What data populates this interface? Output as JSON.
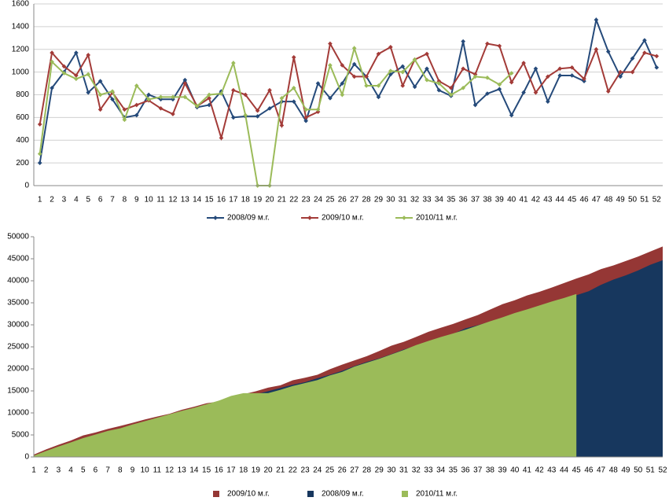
{
  "chart_data": [
    {
      "type": "line",
      "categories": [
        "1",
        "2",
        "3",
        "4",
        "5",
        "6",
        "7",
        "8",
        "9",
        "10",
        "11",
        "12",
        "13",
        "14",
        "15",
        "16",
        "17",
        "18",
        "19",
        "20",
        "21",
        "22",
        "23",
        "24",
        "25",
        "26",
        "27",
        "28",
        "29",
        "30",
        "31",
        "32",
        "33",
        "34",
        "35",
        "36",
        "37",
        "38",
        "39",
        "40",
        "41",
        "42",
        "43",
        "44",
        "45",
        "46",
        "47",
        "48",
        "49",
        "50",
        "51",
        "52"
      ],
      "series": [
        {
          "name": "2008/09 м.г.",
          "color": "#254a7a",
          "values": [
            200,
            860,
            1000,
            1170,
            820,
            920,
            760,
            600,
            620,
            800,
            760,
            760,
            930,
            690,
            710,
            830,
            600,
            610,
            610,
            680,
            740,
            740,
            570,
            900,
            770,
            900,
            1070,
            960,
            780,
            980,
            1050,
            870,
            1030,
            840,
            790,
            1270,
            710,
            810,
            850,
            620,
            820,
            1030,
            740,
            970,
            970,
            920,
            1460,
            1180,
            960,
            1120,
            1280,
            1040
          ]
        },
        {
          "name": "2009/10 м.г.",
          "color": "#a33b38",
          "values": [
            540,
            1170,
            1050,
            970,
            1150,
            670,
            820,
            670,
            710,
            750,
            680,
            630,
            900,
            700,
            770,
            420,
            840,
            800,
            660,
            840,
            530,
            1130,
            600,
            650,
            1250,
            1060,
            960,
            960,
            1160,
            1220,
            880,
            1110,
            1160,
            920,
            860,
            1030,
            980,
            1250,
            1230,
            910,
            1080,
            820,
            960,
            1030,
            1040,
            940,
            1200,
            830,
            1000,
            1000,
            1170,
            1140
          ]
        },
        {
          "name": "2010/11 м.г.",
          "color": "#9bbb59",
          "values": [
            280,
            1090,
            990,
            940,
            980,
            800,
            830,
            580,
            880,
            760,
            780,
            780,
            780,
            700,
            800,
            810,
            1080,
            620,
            0,
            0,
            770,
            860,
            670,
            670,
            1060,
            800,
            1210,
            880,
            880,
            1010,
            1000,
            1110,
            930,
            900,
            800,
            860,
            960,
            950,
            890,
            990,
            null,
            null,
            null,
            null,
            null,
            null,
            null,
            null,
            null,
            null,
            null,
            null
          ]
        }
      ],
      "ylim": [
        0,
        1600
      ],
      "yticks": [
        0,
        200,
        400,
        600,
        800,
        1000,
        1200,
        1400,
        1600
      ],
      "grid": true,
      "legend": "bottom"
    },
    {
      "type": "area",
      "categories": [
        "1",
        "2",
        "3",
        "4",
        "5",
        "6",
        "7",
        "8",
        "9",
        "10",
        "11",
        "12",
        "13",
        "14",
        "15",
        "16",
        "17",
        "18",
        "19",
        "20",
        "21",
        "22",
        "23",
        "24",
        "25",
        "26",
        "27",
        "28",
        "29",
        "30",
        "31",
        "32",
        "33",
        "34",
        "35",
        "36",
        "37",
        "38",
        "39",
        "40",
        "41",
        "42",
        "43",
        "44",
        "45",
        "46",
        "47",
        "48",
        "49",
        "50",
        "51",
        "52"
      ],
      "series": [
        {
          "name": "2009/10 м.г.",
          "color": "#953735",
          "values": [
            540,
            1710,
            2760,
            3730,
            4880,
            5550,
            6370,
            7040,
            7750,
            8500,
            9180,
            9810,
            10710,
            11410,
            12180,
            12600,
            13440,
            14240,
            14900,
            15740,
            16270,
            17400,
            18000,
            18650,
            19900,
            20960,
            21920,
            22880,
            24040,
            25260,
            26140,
            27250,
            28410,
            29330,
            30190,
            31220,
            32200,
            33450,
            34680,
            35590,
            36670,
            37490,
            38450,
            39480,
            40520,
            41460,
            42660,
            43490,
            44490,
            45490,
            46660,
            47800
          ]
        },
        {
          "name": "2008/09 м.г.",
          "color": "#17375e",
          "values": [
            200,
            1060,
            2060,
            3230,
            4050,
            4970,
            5730,
            6330,
            6950,
            7750,
            8510,
            9270,
            10200,
            10890,
            11600,
            12430,
            13030,
            13640,
            14250,
            14930,
            15670,
            16410,
            16980,
            17880,
            18650,
            19550,
            20620,
            21580,
            22360,
            23340,
            24390,
            25260,
            26290,
            27130,
            27920,
            29190,
            29900,
            30710,
            31560,
            32180,
            33000,
            34030,
            34770,
            35740,
            36710,
            37630,
            39090,
            40270,
            41230,
            42350,
            43630,
            44670
          ]
        },
        {
          "name": "2010/11 м.г.",
          "color": "#9bbb59",
          "values": [
            280,
            1370,
            2360,
            3300,
            4280,
            5080,
            5910,
            6490,
            7370,
            8130,
            8910,
            9690,
            10470,
            11170,
            11970,
            12780,
            13860,
            14480,
            14480,
            14480,
            15250,
            16110,
            16780,
            17450,
            18510,
            19310,
            20520,
            21400,
            22280,
            23290,
            24290,
            25400,
            26330,
            27230,
            28030,
            28890,
            29850,
            30800,
            31690,
            32680,
            33500,
            34400,
            35300,
            36100,
            37000,
            null,
            null,
            null,
            null,
            null,
            null,
            null
          ]
        }
      ],
      "ylim": [
        0,
        50000
      ],
      "yticks": [
        0,
        5000,
        10000,
        15000,
        20000,
        25000,
        30000,
        35000,
        40000,
        45000,
        50000
      ],
      "grid": false,
      "legend": "bottom"
    }
  ]
}
